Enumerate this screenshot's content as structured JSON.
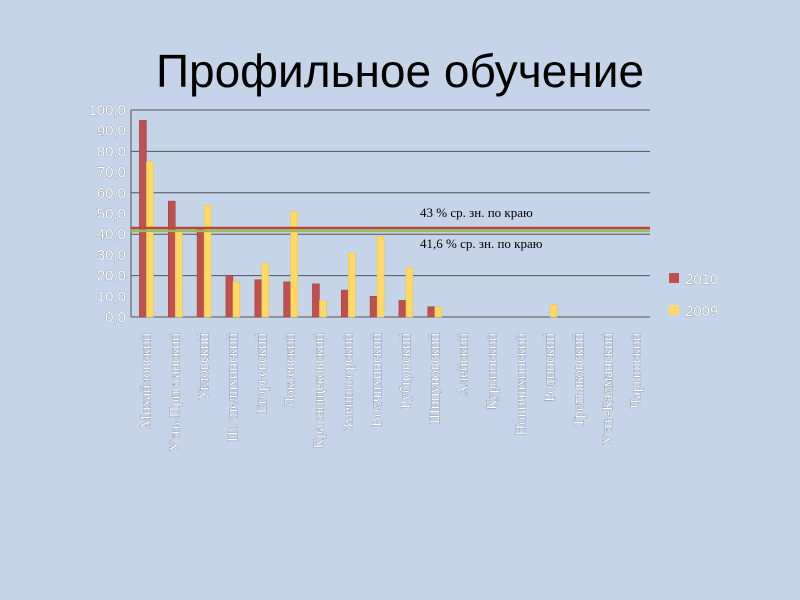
{
  "title": "Профильное обучение",
  "colors": {
    "background": "#c5d4e8",
    "series_2010": "#c0504d",
    "series_2009": "#ffd966",
    "avg_line_43": "#b24a3b",
    "avg_line_41_6": "#9bbb59",
    "gridline": "#555555"
  },
  "chart_data": {
    "type": "bar",
    "title": "Профильное обучение",
    "xlabel": "",
    "ylabel": "",
    "ylim": [
      0,
      100
    ],
    "yticks": [
      "0,0",
      "10,0",
      "20,0",
      "30,0",
      "40,0",
      "50,0",
      "60,0",
      "70,0",
      "80,0",
      "90,0",
      "100,0"
    ],
    "grid": true,
    "legend_position": "right",
    "categories": [
      "Михайловский",
      "Усть-Пристанский",
      "Угловский",
      "Поспелихинский",
      "Егорьевский",
      "Локтевский",
      "Краснощековский",
      "Змеиногорский",
      "Волчихинский",
      "Рубцовский",
      "Шипуновский",
      "Алейский",
      "Курьинский",
      "Новичихинский",
      "Родинский",
      "Третьяковский",
      "Усть-Калманский",
      "Чарышский"
    ],
    "series": [
      {
        "name": "2010",
        "values": [
          95,
          56,
          43,
          20,
          18,
          17,
          16,
          13,
          10,
          8,
          5,
          0,
          0,
          0,
          0,
          0,
          0,
          0
        ]
      },
      {
        "name": "2009",
        "values": [
          75,
          42,
          54,
          17,
          26,
          51,
          8,
          31,
          39,
          24,
          5,
          0,
          0,
          0,
          6,
          0,
          0,
          0
        ]
      }
    ],
    "reference_lines": [
      {
        "value": 43,
        "label": "43 % ср. зн. по краю"
      },
      {
        "value": 41.6,
        "label": "41,6 % ср. зн. по краю"
      }
    ]
  }
}
